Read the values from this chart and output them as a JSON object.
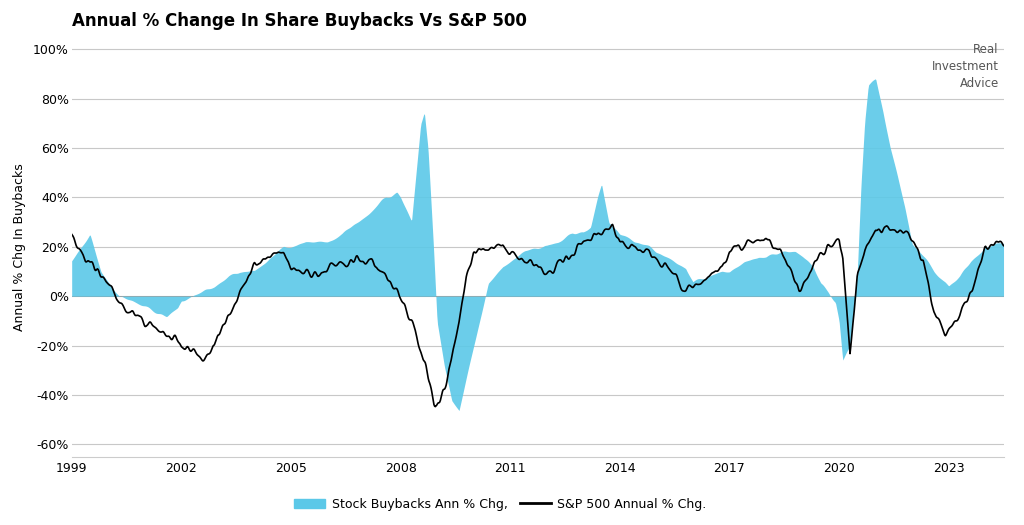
{
  "title": "Annual % Change In Share Buybacks Vs S&P 500",
  "ylabel": "Annual % Chg In Buybacks",
  "background_color": "#ffffff",
  "grid_color": "#c8c8c8",
  "bar_color": "#5bc8e8",
  "line_color": "#000000",
  "ylim": [
    -0.65,
    1.05
  ],
  "yticks": [
    -0.6,
    -0.4,
    -0.2,
    0.0,
    0.2,
    0.4,
    0.6,
    0.8,
    1.0
  ],
  "ytick_labels": [
    "-60%",
    "-40%",
    "-20%",
    "0%",
    "20%",
    "40%",
    "60%",
    "80%",
    "100%"
  ],
  "xticks": [
    1999,
    2002,
    2005,
    2008,
    2011,
    2014,
    2017,
    2020,
    2023
  ],
  "legend_buybacks": "Stock Buybacks Ann % Chg,",
  "legend_sp500": "S&P 500 Annual % Chg.",
  "xlim_start": 1999.0,
  "xlim_end": 2024.5,
  "sp500_key_years": [
    1999.0,
    1999.3,
    1999.6,
    1999.9,
    2000.1,
    2000.4,
    2000.7,
    2000.9,
    2001.0,
    2001.3,
    2001.6,
    2001.9,
    2002.0,
    2002.3,
    2002.6,
    2002.9,
    2003.0,
    2003.3,
    2003.6,
    2003.9,
    2004.0,
    2004.4,
    2004.8,
    2005.0,
    2005.4,
    2005.8,
    2006.0,
    2006.4,
    2006.8,
    2007.0,
    2007.4,
    2007.6,
    2007.8,
    2008.0,
    2008.2,
    2008.4,
    2008.6,
    2008.8,
    2008.9,
    2009.0,
    2009.2,
    2009.4,
    2009.6,
    2009.8,
    2010.0,
    2010.4,
    2010.8,
    2011.0,
    2011.4,
    2011.8,
    2012.0,
    2012.4,
    2012.8,
    2013.0,
    2013.4,
    2013.8,
    2014.0,
    2014.4,
    2014.8,
    2015.0,
    2015.4,
    2015.6,
    2015.8,
    2016.0,
    2016.2,
    2016.4,
    2016.8,
    2017.0,
    2017.4,
    2017.8,
    2018.0,
    2018.4,
    2018.7,
    2018.9,
    2019.0,
    2019.2,
    2019.6,
    2019.9,
    2020.0,
    2020.1,
    2020.3,
    2020.5,
    2020.7,
    2020.9,
    2021.0,
    2021.3,
    2021.6,
    2021.9,
    2022.0,
    2022.3,
    2022.6,
    2022.9,
    2023.0,
    2023.3,
    2023.6,
    2023.9,
    2024.0,
    2024.4
  ],
  "sp500_key_vals": [
    0.22,
    0.16,
    0.12,
    0.08,
    0.04,
    -0.04,
    -0.08,
    -0.1,
    -0.12,
    -0.14,
    -0.16,
    -0.18,
    -0.2,
    -0.22,
    -0.24,
    -0.22,
    -0.16,
    -0.08,
    0.02,
    0.1,
    0.14,
    0.16,
    0.17,
    0.12,
    0.1,
    0.09,
    0.12,
    0.14,
    0.15,
    0.14,
    0.12,
    0.08,
    0.04,
    0.0,
    -0.06,
    -0.15,
    -0.25,
    -0.35,
    -0.42,
    -0.44,
    -0.38,
    -0.24,
    -0.1,
    0.08,
    0.18,
    0.2,
    0.22,
    0.18,
    0.14,
    0.12,
    0.1,
    0.14,
    0.18,
    0.22,
    0.26,
    0.28,
    0.22,
    0.2,
    0.18,
    0.14,
    0.1,
    0.06,
    0.04,
    0.04,
    0.06,
    0.08,
    0.12,
    0.18,
    0.2,
    0.22,
    0.22,
    0.18,
    0.1,
    0.02,
    0.04,
    0.1,
    0.18,
    0.22,
    0.24,
    0.16,
    -0.22,
    0.08,
    0.18,
    0.22,
    0.26,
    0.28,
    0.26,
    0.24,
    0.22,
    0.14,
    -0.06,
    -0.16,
    -0.14,
    -0.08,
    0.02,
    0.14,
    0.2,
    0.22
  ],
  "buybacks_key_years": [
    1999.0,
    1999.5,
    1999.8,
    2000.0,
    2000.3,
    2000.6,
    2001.0,
    2001.3,
    2001.6,
    2001.9,
    2002.0,
    2002.3,
    2002.6,
    2002.9,
    2003.0,
    2003.3,
    2003.6,
    2004.0,
    2004.4,
    2004.8,
    2005.0,
    2005.4,
    2005.8,
    2006.0,
    2006.4,
    2007.0,
    2007.3,
    2007.6,
    2007.9,
    2008.0,
    2008.3,
    2008.55,
    2008.65,
    2008.75,
    2008.9,
    2009.0,
    2009.2,
    2009.4,
    2009.6,
    2010.0,
    2010.4,
    2010.8,
    2011.0,
    2011.4,
    2011.8,
    2012.0,
    2012.3,
    2012.5,
    2012.7,
    2013.0,
    2013.2,
    2013.4,
    2013.5,
    2013.7,
    2014.0,
    2014.4,
    2014.8,
    2015.0,
    2015.4,
    2015.8,
    2016.0,
    2016.4,
    2016.8,
    2017.0,
    2017.4,
    2017.8,
    2018.0,
    2018.4,
    2018.8,
    2019.0,
    2019.3,
    2019.5,
    2019.7,
    2019.9,
    2020.0,
    2020.1,
    2020.3,
    2020.5,
    2020.6,
    2020.7,
    2020.8,
    2021.0,
    2021.2,
    2021.4,
    2021.6,
    2021.8,
    2022.0,
    2022.3,
    2022.6,
    2022.9,
    2023.0,
    2023.3,
    2023.6,
    2023.9,
    2024.0,
    2024.4
  ],
  "buybacks_key_vals": [
    0.15,
    0.25,
    0.1,
    0.05,
    0.0,
    -0.02,
    -0.04,
    -0.06,
    -0.08,
    -0.05,
    -0.02,
    0.0,
    0.02,
    0.04,
    0.05,
    0.08,
    0.1,
    0.1,
    0.15,
    0.2,
    0.2,
    0.22,
    0.22,
    0.22,
    0.25,
    0.32,
    0.36,
    0.4,
    0.42,
    0.4,
    0.3,
    0.7,
    0.75,
    0.6,
    0.2,
    -0.1,
    -0.28,
    -0.42,
    -0.46,
    -0.2,
    0.05,
    0.12,
    0.14,
    0.18,
    0.2,
    0.2,
    0.22,
    0.24,
    0.26,
    0.26,
    0.28,
    0.4,
    0.45,
    0.3,
    0.25,
    0.22,
    0.2,
    0.18,
    0.15,
    0.12,
    0.06,
    0.08,
    0.1,
    0.1,
    0.14,
    0.16,
    0.16,
    0.18,
    0.18,
    0.16,
    0.12,
    0.05,
    0.02,
    -0.02,
    -0.1,
    -0.26,
    -0.2,
    0.1,
    0.45,
    0.7,
    0.85,
    0.88,
    0.75,
    0.6,
    0.48,
    0.36,
    0.22,
    0.16,
    0.1,
    0.06,
    0.04,
    0.08,
    0.14,
    0.18,
    0.2,
    0.22
  ]
}
